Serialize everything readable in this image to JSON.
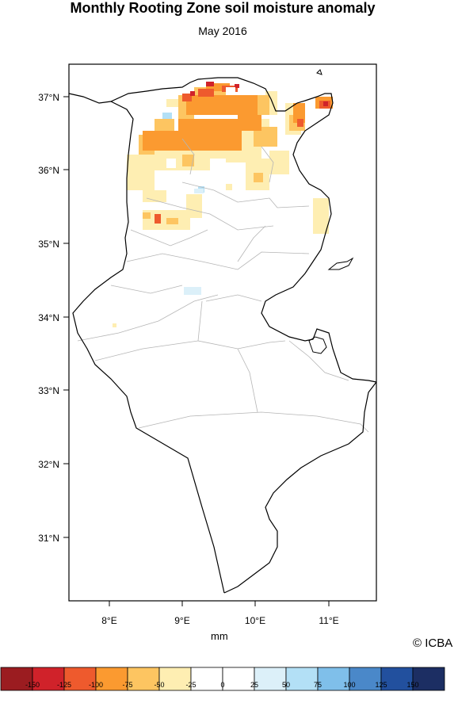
{
  "title": "Monthly Rooting Zone soil moisture anomaly",
  "subtitle": "May 2016",
  "unit_label": "mm",
  "credit": "© ICBA",
  "axes": {
    "lon_ticks": [
      "8°E",
      "9°E",
      "10°E",
      "11°E"
    ],
    "lat_ticks": [
      "37°N",
      "36°N",
      "35°N",
      "34°N",
      "33°N",
      "32°N",
      "31°N"
    ],
    "lon_range": [
      7.5,
      11.6
    ],
    "lat_range": [
      30.2,
      37.5
    ]
  },
  "colorbar": {
    "labels": [
      "-150",
      "-125",
      "-100",
      "-75",
      "-50",
      "-25",
      "0",
      "25",
      "50",
      "75",
      "100",
      "125",
      "150"
    ],
    "colors": [
      "#9b1c20",
      "#d0222a",
      "#ee5a2d",
      "#fb9a30",
      "#fdc561",
      "#feeeb2",
      "#ffffff",
      "#ffffff",
      "#dcf0f9",
      "#b3e0f6",
      "#7fbfea",
      "#4a88c9",
      "#22509e",
      "#1c2e63"
    ]
  },
  "map_data": {
    "variable": "Monthly Rooting Zone soil moisture anomaly",
    "period": "May 2016",
    "units": "mm",
    "region": "Tunisia",
    "summary": "Dry anomalies (-25 to -125 mm) across northern Tunisia, strongest near the north coast and Cap Bon; isolated small wet anomalies near 9°E; rest near zero."
  }
}
